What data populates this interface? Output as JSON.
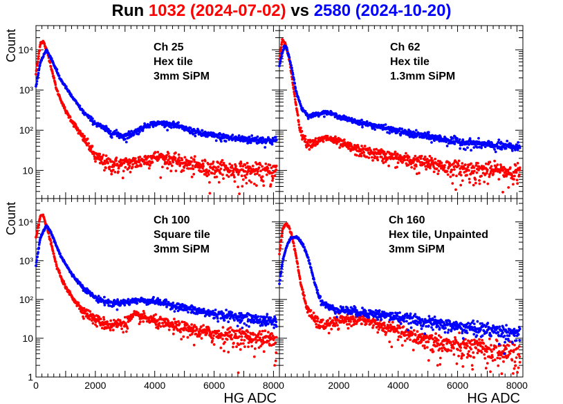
{
  "title": {
    "prefix": "Run",
    "run_a": "1032 (2024-07-02)",
    "middle": "vs",
    "run_b": "2580 (2024-10-20)",
    "color_a": "#ff0000",
    "color_b": "#0000ff",
    "color_text": "#000000"
  },
  "chart_data": [
    {
      "type": "scatter",
      "panel": "top-left",
      "annotation": [
        "Ch 25",
        "Hex tile",
        "3mm SiPM"
      ],
      "ylabel": "Count",
      "xlabel": "",
      "xlim": [
        0,
        8200
      ],
      "ylim_log": [
        2,
        40000
      ],
      "yticks": [
        {
          "v": 10,
          "label": "10"
        },
        {
          "v": 100,
          "label": "10²"
        },
        {
          "v": 1000,
          "label": "10³"
        },
        {
          "v": 10000,
          "label": "10⁴"
        }
      ],
      "xticks": [],
      "series": [
        {
          "name": "Run 1032",
          "color": "#ff0000",
          "x": [
            0,
            150,
            250,
            400,
            700,
            1000,
            1500,
            1800,
            2000,
            2400,
            2800,
            3200,
            3600,
            4000,
            4400,
            5000,
            5600,
            6200,
            7000,
            7600,
            8100
          ],
          "y": [
            2500,
            15000,
            16000,
            8000,
            1000,
            300,
            80,
            40,
            22,
            15,
            14,
            15,
            18,
            22,
            20,
            15,
            12,
            11,
            10,
            9,
            10
          ]
        },
        {
          "name": "Run 2580",
          "color": "#0000ff",
          "x": [
            0,
            150,
            350,
            500,
            800,
            1200,
            1600,
            2000,
            2500,
            3000,
            3400,
            3800,
            4200,
            4600,
            5000,
            5500,
            6000,
            6500,
            7000,
            7500,
            8100
          ],
          "y": [
            1200,
            5000,
            10000,
            6500,
            2000,
            700,
            280,
            150,
            90,
            70,
            95,
            140,
            150,
            140,
            110,
            85,
            72,
            65,
            60,
            58,
            55
          ]
        }
      ]
    },
    {
      "type": "scatter",
      "panel": "top-right",
      "annotation": [
        "Ch 62",
        "Hex tile",
        "1.3mm SiPM"
      ],
      "ylabel": "",
      "xlabel": "",
      "xlim": [
        0,
        8200
      ],
      "ylim_log": [
        2,
        40000
      ],
      "yticks": [],
      "xticks": [],
      "series": [
        {
          "name": "Run 1032",
          "color": "#ff0000",
          "x": [
            0,
            100,
            200,
            350,
            500,
            700,
            900,
            1200,
            1600,
            2000,
            2500,
            3000,
            3500,
            4000,
            4500,
            5000,
            5500,
            6000,
            7000,
            8100
          ],
          "y": [
            6000,
            18000,
            14000,
            5000,
            800,
            100,
            50,
            50,
            65,
            50,
            35,
            28,
            24,
            20,
            17,
            15,
            13,
            11,
            10,
            9
          ]
        },
        {
          "name": "Run 2580",
          "color": "#0000ff",
          "x": [
            0,
            150,
            250,
            400,
            550,
            750,
            1000,
            1300,
            1600,
            2000,
            2500,
            3000,
            3500,
            4000,
            4500,
            5000,
            5500,
            6000,
            7000,
            8100
          ],
          "y": [
            4000,
            12000,
            11000,
            4000,
            1000,
            350,
            220,
            260,
            280,
            220,
            170,
            140,
            115,
            95,
            80,
            70,
            60,
            52,
            43,
            37
          ]
        }
      ]
    },
    {
      "type": "scatter",
      "panel": "bottom-left",
      "annotation": [
        "Ch 100",
        "Square tile",
        "3mm SiPM"
      ],
      "ylabel": "Count",
      "xlabel": "HG ADC",
      "xlim": [
        0,
        8200
      ],
      "ylim_log": [
        1,
        40000
      ],
      "yticks": [
        {
          "v": 1,
          "label": "1"
        },
        {
          "v": 10,
          "label": "10"
        },
        {
          "v": 100,
          "label": "10²"
        },
        {
          "v": 1000,
          "label": "10³"
        },
        {
          "v": 10000,
          "label": "10⁴"
        }
      ],
      "xticks": [
        {
          "v": 0,
          "label": "0"
        },
        {
          "v": 2000,
          "label": "2000"
        },
        {
          "v": 4000,
          "label": "4000"
        },
        {
          "v": 6000,
          "label": "6000"
        },
        {
          "v": 8000,
          "label": "8000"
        }
      ],
      "series": [
        {
          "name": "Run 1032",
          "color": "#ff0000",
          "x": [
            0,
            150,
            250,
            400,
            700,
            1000,
            1500,
            2000,
            2500,
            3000,
            3300,
            3600,
            4000,
            4500,
            5000,
            5500,
            6000,
            6500,
            7000,
            7500,
            8100
          ],
          "y": [
            4000,
            15000,
            14000,
            6000,
            700,
            200,
            60,
            30,
            22,
            25,
            38,
            35,
            28,
            22,
            18,
            15,
            13,
            12,
            11,
            10,
            9
          ]
        },
        {
          "name": "Run 2580",
          "color": "#0000ff",
          "x": [
            0,
            150,
            350,
            500,
            800,
            1200,
            1600,
            2000,
            2500,
            3000,
            3500,
            4000,
            4500,
            5000,
            5500,
            6000,
            6500,
            7000,
            7500,
            8100
          ],
          "y": [
            800,
            4000,
            8000,
            5500,
            1500,
            450,
            200,
            110,
            80,
            85,
            95,
            90,
            75,
            60,
            50,
            42,
            38,
            34,
            30,
            27
          ]
        }
      ]
    },
    {
      "type": "scatter",
      "panel": "bottom-right",
      "annotation": [
        "Ch 160",
        "Hex tile, Unpainted",
        "3mm SiPM"
      ],
      "ylabel": "",
      "xlabel": "HG ADC",
      "xlim": [
        0,
        8200
      ],
      "ylim_log": [
        1,
        40000
      ],
      "yticks": [],
      "xticks": [
        {
          "v": 2000,
          "label": "2000"
        },
        {
          "v": 4000,
          "label": "4000"
        },
        {
          "v": 6000,
          "label": "6000"
        },
        {
          "v": 8000,
          "label": "8000"
        }
      ],
      "series": [
        {
          "name": "Run 1032",
          "color": "#ff0000",
          "x": [
            0,
            100,
            200,
            300,
            400,
            550,
            700,
            900,
            1100,
            1400,
            1800,
            2200,
            2600,
            3000,
            3500,
            4000,
            4500,
            5000,
            5500,
            6000,
            7000,
            8100
          ],
          "y": [
            1500,
            6000,
            9000,
            8000,
            5000,
            1500,
            300,
            70,
            35,
            22,
            24,
            30,
            32,
            28,
            20,
            15,
            11,
            9,
            7,
            6,
            5,
            3.5
          ]
        },
        {
          "name": "Run 2580",
          "color": "#0000ff",
          "x": [
            0,
            100,
            250,
            400,
            600,
            800,
            1000,
            1200,
            1400,
            1700,
            2000,
            2500,
            3000,
            3500,
            4000,
            4500,
            5000,
            5500,
            6000,
            7000,
            8100
          ],
          "y": [
            250,
            900,
            2500,
            4000,
            4000,
            2500,
            1000,
            250,
            90,
            60,
            55,
            50,
            45,
            40,
            35,
            30,
            26,
            23,
            20,
            17,
            13
          ]
        }
      ]
    }
  ]
}
